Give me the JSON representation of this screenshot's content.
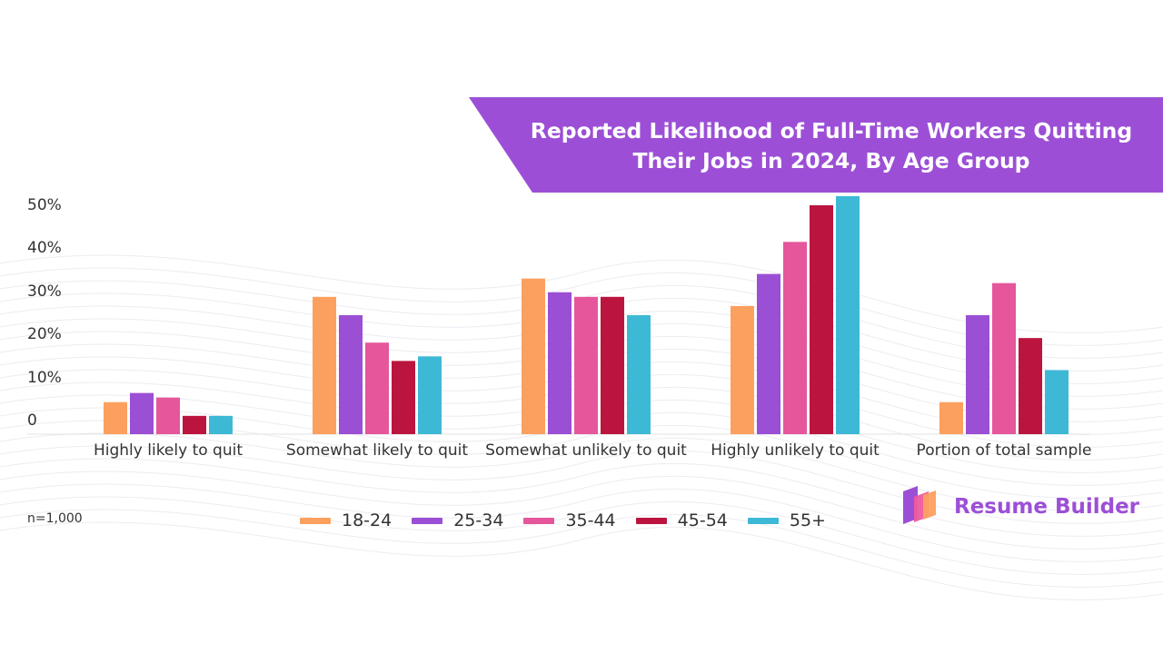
{
  "title": "Reported Likelihood of Full-Time Workers Quitting Their Jobs in 2024, By Age Group",
  "title_lines": [
    "Reported Likelihood of Full-Time Workers Quitting",
    "Their Jobs in 2024, By Age Group"
  ],
  "note": "n=1,000",
  "brand": {
    "name": "Resume Builder",
    "logo_icon": "resume-builder-logo-icon"
  },
  "colors": {
    "banner": "#9c4fd6",
    "18-24": "#fca05f",
    "25-34": "#9b4fd4",
    "35-44": "#e5569b",
    "45-54": "#bb153f",
    "55+": "#3eb9d5"
  },
  "y_tick_labels": [
    "50%",
    "40%",
    "30%",
    "20%",
    "10%",
    "0"
  ],
  "chart_data": {
    "type": "bar",
    "title": "Reported Likelihood of Full-Time Workers Quitting Their Jobs in 2024, By Age Group",
    "xlabel": "",
    "ylabel": "",
    "ylim": [
      0,
      50
    ],
    "grid": false,
    "legend_position": "bottom",
    "categories": [
      "Highly likely to quit",
      "Somewhat likely to quit",
      "Somewhat unlikely to quit",
      "Highly unlikely to quit",
      "Portion of total sample"
    ],
    "series": [
      {
        "name": "18-24",
        "color": "#fca05f",
        "values": [
          7,
          30,
          34,
          28,
          7
        ]
      },
      {
        "name": "25-34",
        "color": "#9b4fd4",
        "values": [
          9,
          26,
          31,
          35,
          26
        ]
      },
      {
        "name": "35-44",
        "color": "#e5569b",
        "values": [
          8,
          20,
          30,
          42,
          33
        ]
      },
      {
        "name": "45-54",
        "color": "#bb153f",
        "values": [
          4,
          16,
          30,
          50,
          21
        ]
      },
      {
        "name": "55+",
        "color": "#3eb9d5",
        "values": [
          4,
          17,
          26,
          52,
          14
        ]
      }
    ]
  }
}
